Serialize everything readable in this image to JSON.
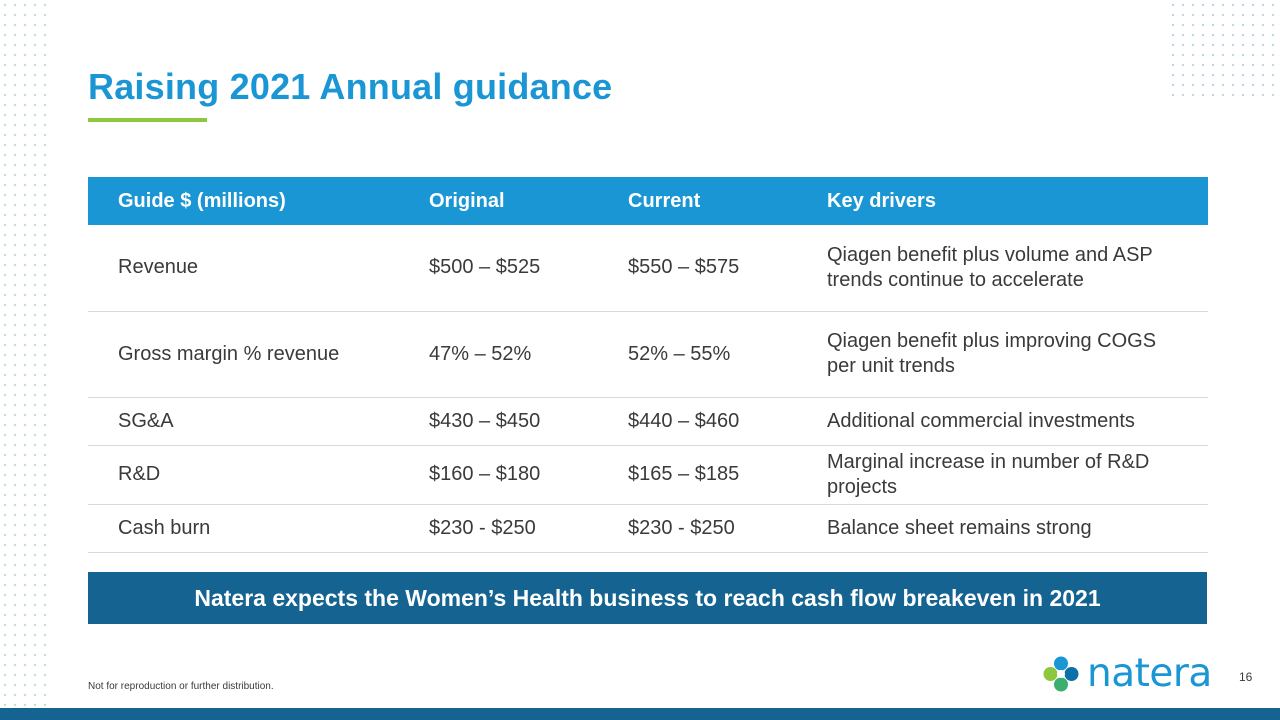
{
  "title": "Raising 2021 Annual guidance",
  "table": {
    "headers": [
      "Guide $ (millions)",
      "Original",
      "Current",
      "Key drivers"
    ],
    "rows": [
      {
        "metric": "Revenue",
        "original": "$500 – $525",
        "current": "$550 – $575",
        "drivers": "Qiagen benefit plus volume and ASP trends continue to accelerate"
      },
      {
        "metric": "Gross margin % revenue",
        "original": "47% – 52%",
        "current": "52% – 55%",
        "drivers": "Qiagen benefit plus improving COGS per unit trends"
      },
      {
        "metric": "SG&A",
        "original": "$430 – $450",
        "current": "$440 – $460",
        "drivers": "Additional commercial investments"
      },
      {
        "metric": "R&D",
        "original": "$160 – $180",
        "current": "$165 – $185",
        "drivers": "Marginal increase in number of R&D projects"
      },
      {
        "metric": "Cash burn",
        "original": "$230 - $250",
        "current": "$230 - $250",
        "drivers": "Balance sheet remains strong"
      }
    ]
  },
  "banner": "Natera expects the Women’s Health business to reach cash flow breakeven in 2021",
  "footer_note": "Not for reproduction or further distribution.",
  "logo_text": "natera",
  "page_number": "16",
  "colors": {
    "title_blue": "#1a96d4",
    "accent_green": "#8dc63f",
    "banner_navy": "#146391"
  }
}
